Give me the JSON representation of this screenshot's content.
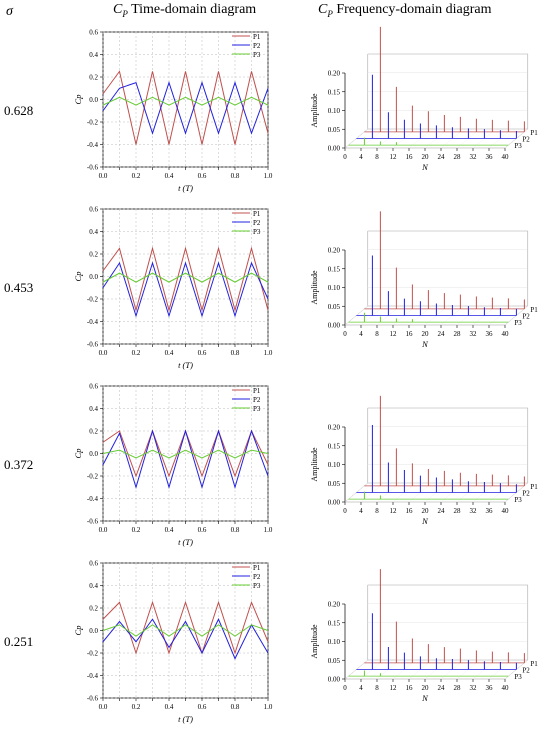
{
  "header": {
    "sigma_label": "σ",
    "time_title": "Time-domain diagram",
    "freq_title": "Frequency-domain diagram",
    "cp_symbol": "C",
    "cp_sub": "P"
  },
  "colors": {
    "P1": "#c0504d",
    "P2": "#2020e0",
    "P3": "#66cc33",
    "grid": "#bbbbbb"
  },
  "chart_data": [
    {
      "type": "line",
      "sigma": "0.628",
      "x": [
        0.0,
        0.1,
        0.2,
        0.3,
        0.4,
        0.5,
        0.6,
        0.7,
        0.8,
        0.9,
        1.0
      ],
      "xlabel": "t (T)",
      "ylabel": "Cp",
      "xlim": [
        0,
        1
      ],
      "ylim": [
        -0.6,
        0.6
      ],
      "yticks": [
        -0.6,
        -0.4,
        -0.2,
        0.0,
        0.2,
        0.4,
        0.6
      ],
      "series": [
        {
          "name": "P1",
          "values": [
            0.05,
            0.25,
            -0.4,
            0.25,
            -0.4,
            0.25,
            -0.4,
            0.25,
            -0.4,
            0.25,
            -0.3
          ]
        },
        {
          "name": "P2",
          "values": [
            -0.1,
            0.1,
            0.15,
            -0.3,
            0.15,
            -0.3,
            0.15,
            -0.3,
            0.15,
            -0.3,
            0.1
          ]
        },
        {
          "name": "P3",
          "values": [
            -0.05,
            0.02,
            -0.05,
            0.02,
            -0.05,
            0.02,
            -0.05,
            0.02,
            -0.05,
            0.02,
            -0.05
          ]
        }
      ],
      "legend": "top-right",
      "grid": true
    },
    {
      "type": "bar",
      "subtype": "3d-spectrum",
      "sigma": "0.628",
      "categories": [
        0,
        4,
        8,
        12,
        16,
        20,
        24,
        28,
        32,
        36,
        40
      ],
      "xlabel": "N",
      "ylabel": "Amplitude",
      "ylim": [
        0,
        0.2
      ],
      "yticks": [
        0.0,
        0.05,
        0.1,
        0.15,
        0.2
      ],
      "series": [
        {
          "name": "P1",
          "peaks": [
            [
              4,
              0.28
            ],
            [
              8,
              0.12
            ],
            [
              12,
              0.07
            ],
            [
              16,
              0.055
            ],
            [
              20,
              0.045
            ],
            [
              24,
              0.04
            ],
            [
              28,
              0.035
            ],
            [
              32,
              0.032
            ],
            [
              36,
              0.03
            ],
            [
              40,
              0.028
            ]
          ]
        },
        {
          "name": "P2",
          "peaks": [
            [
              4,
              0.17
            ],
            [
              8,
              0.07
            ],
            [
              12,
              0.05
            ],
            [
              16,
              0.04
            ],
            [
              20,
              0.035
            ],
            [
              24,
              0.03
            ],
            [
              28,
              0.027
            ],
            [
              32,
              0.025
            ],
            [
              36,
              0.022
            ],
            [
              40,
              0.02
            ]
          ]
        },
        {
          "name": "P3",
          "peaks": [
            [
              4,
              0.02
            ],
            [
              8,
              0.01
            ],
            [
              12,
              0.008
            ]
          ]
        }
      ]
    },
    {
      "type": "line",
      "sigma": "0.453",
      "x": [
        0.0,
        0.1,
        0.2,
        0.3,
        0.4,
        0.5,
        0.6,
        0.7,
        0.8,
        0.9,
        1.0
      ],
      "xlabel": "t (T)",
      "ylabel": "Cp",
      "xlim": [
        0,
        1
      ],
      "ylim": [
        -0.6,
        0.6
      ],
      "yticks": [
        -0.6,
        -0.4,
        -0.2,
        0.0,
        0.2,
        0.4,
        0.6
      ],
      "series": [
        {
          "name": "P1",
          "values": [
            0.05,
            0.25,
            -0.3,
            0.25,
            -0.3,
            0.25,
            -0.3,
            0.25,
            -0.3,
            0.25,
            -0.3
          ]
        },
        {
          "name": "P2",
          "values": [
            -0.1,
            0.12,
            -0.35,
            0.12,
            -0.35,
            0.12,
            -0.35,
            0.12,
            -0.35,
            0.12,
            -0.2
          ]
        },
        {
          "name": "P3",
          "values": [
            -0.05,
            0.03,
            -0.05,
            0.03,
            -0.05,
            0.03,
            -0.05,
            0.03,
            -0.05,
            0.03,
            -0.05
          ]
        }
      ],
      "legend": "top-right",
      "grid": true
    },
    {
      "type": "bar",
      "subtype": "3d-spectrum",
      "sigma": "0.453",
      "categories": [
        0,
        4,
        8,
        12,
        16,
        20,
        24,
        28,
        32,
        36,
        40
      ],
      "xlabel": "N",
      "ylabel": "Amplitude",
      "ylim": [
        0,
        0.2
      ],
      "yticks": [
        0.0,
        0.05,
        0.1,
        0.15,
        0.2
      ],
      "series": [
        {
          "name": "P1",
          "peaks": [
            [
              4,
              0.26
            ],
            [
              8,
              0.11
            ],
            [
              12,
              0.065
            ],
            [
              16,
              0.05
            ],
            [
              20,
              0.042
            ],
            [
              24,
              0.038
            ],
            [
              28,
              0.033
            ],
            [
              32,
              0.03
            ],
            [
              36,
              0.028
            ],
            [
              40,
              0.025
            ]
          ]
        },
        {
          "name": "P2",
          "peaks": [
            [
              4,
              0.16
            ],
            [
              8,
              0.065
            ],
            [
              12,
              0.045
            ],
            [
              16,
              0.038
            ],
            [
              20,
              0.032
            ],
            [
              24,
              0.028
            ],
            [
              28,
              0.025
            ],
            [
              32,
              0.022
            ],
            [
              36,
              0.02
            ],
            [
              40,
              0.018
            ]
          ]
        },
        {
          "name": "P3",
          "peaks": [
            [
              4,
              0.025
            ],
            [
              8,
              0.015
            ],
            [
              12,
              0.01
            ],
            [
              16,
              0.008
            ]
          ]
        }
      ]
    },
    {
      "type": "line",
      "sigma": "0.372",
      "x": [
        0.0,
        0.1,
        0.2,
        0.3,
        0.4,
        0.5,
        0.6,
        0.7,
        0.8,
        0.9,
        1.0
      ],
      "xlabel": "t (T)",
      "ylabel": "Cp",
      "xlim": [
        0,
        1
      ],
      "ylim": [
        -0.6,
        0.6
      ],
      "yticks": [
        -0.6,
        -0.4,
        -0.2,
        0.0,
        0.2,
        0.4,
        0.6
      ],
      "series": [
        {
          "name": "P1",
          "values": [
            0.1,
            0.2,
            -0.2,
            0.2,
            -0.2,
            0.2,
            -0.2,
            0.2,
            -0.2,
            0.2,
            -0.1
          ]
        },
        {
          "name": "P2",
          "values": [
            -0.1,
            0.18,
            -0.3,
            0.2,
            -0.3,
            0.2,
            -0.3,
            0.2,
            -0.3,
            0.2,
            -0.2
          ]
        },
        {
          "name": "P3",
          "values": [
            0.0,
            0.03,
            -0.04,
            0.03,
            -0.04,
            0.03,
            -0.04,
            0.03,
            -0.04,
            0.03,
            0.0
          ]
        }
      ],
      "legend": "top-right",
      "grid": true
    },
    {
      "type": "bar",
      "subtype": "3d-spectrum",
      "sigma": "0.372",
      "categories": [
        0,
        4,
        8,
        12,
        16,
        20,
        24,
        28,
        32,
        36,
        40
      ],
      "xlabel": "N",
      "ylabel": "Amplitude",
      "ylim": [
        0,
        0.2
      ],
      "yticks": [
        0.0,
        0.05,
        0.1,
        0.15,
        0.2
      ],
      "series": [
        {
          "name": "P1",
          "peaks": [
            [
              4,
              0.24
            ],
            [
              8,
              0.1
            ],
            [
              12,
              0.06
            ],
            [
              16,
              0.045
            ],
            [
              20,
              0.04
            ],
            [
              24,
              0.035
            ],
            [
              28,
              0.032
            ],
            [
              32,
              0.03
            ],
            [
              36,
              0.028
            ],
            [
              40,
              0.025
            ]
          ]
        },
        {
          "name": "P2",
          "peaks": [
            [
              4,
              0.18
            ],
            [
              8,
              0.08
            ],
            [
              12,
              0.06
            ],
            [
              16,
              0.045
            ],
            [
              20,
              0.04
            ],
            [
              24,
              0.035
            ],
            [
              28,
              0.03
            ],
            [
              32,
              0.028
            ],
            [
              36,
              0.025
            ],
            [
              40,
              0.022
            ]
          ]
        },
        {
          "name": "P3",
          "peaks": [
            [
              4,
              0.02
            ],
            [
              8,
              0.01
            ]
          ]
        }
      ]
    },
    {
      "type": "line",
      "sigma": "0.251",
      "x": [
        0.0,
        0.1,
        0.2,
        0.3,
        0.4,
        0.5,
        0.6,
        0.7,
        0.8,
        0.9,
        1.0
      ],
      "xlabel": "t (T)",
      "ylabel": "Cp",
      "xlim": [
        0,
        1
      ],
      "ylim": [
        -0.6,
        0.6
      ],
      "yticks": [
        -0.6,
        -0.4,
        -0.2,
        0.0,
        0.2,
        0.4,
        0.6
      ],
      "series": [
        {
          "name": "P1",
          "values": [
            0.1,
            0.25,
            -0.2,
            0.25,
            -0.2,
            0.25,
            -0.2,
            0.25,
            -0.2,
            0.25,
            -0.1
          ]
        },
        {
          "name": "P2",
          "values": [
            -0.1,
            0.08,
            -0.1,
            0.1,
            -0.15,
            0.08,
            -0.2,
            0.1,
            -0.25,
            0.05,
            -0.2
          ]
        },
        {
          "name": "P3",
          "values": [
            0.0,
            0.05,
            -0.05,
            0.05,
            -0.05,
            0.05,
            -0.05,
            0.05,
            -0.05,
            0.05,
            0.0
          ]
        }
      ],
      "legend": "top-right",
      "grid": true
    },
    {
      "type": "bar",
      "subtype": "3d-spectrum",
      "sigma": "0.251",
      "categories": [
        0,
        4,
        8,
        12,
        16,
        20,
        24,
        28,
        32,
        36,
        40
      ],
      "xlabel": "N",
      "ylabel": "Amplitude",
      "ylim": [
        0,
        0.2
      ],
      "yticks": [
        0.0,
        0.05,
        0.1,
        0.15,
        0.2
      ],
      "series": [
        {
          "name": "P1",
          "peaks": [
            [
              4,
              0.25
            ],
            [
              8,
              0.11
            ],
            [
              12,
              0.065
            ],
            [
              16,
              0.05
            ],
            [
              20,
              0.042
            ],
            [
              24,
              0.038
            ],
            [
              28,
              0.033
            ],
            [
              32,
              0.03
            ],
            [
              36,
              0.028
            ],
            [
              40,
              0.026
            ]
          ]
        },
        {
          "name": "P2",
          "peaks": [
            [
              4,
              0.15
            ],
            [
              8,
              0.06
            ],
            [
              12,
              0.045
            ],
            [
              16,
              0.035
            ],
            [
              20,
              0.03
            ],
            [
              24,
              0.028
            ],
            [
              28,
              0.025
            ],
            [
              32,
              0.022
            ],
            [
              36,
              0.02
            ],
            [
              40,
              0.018
            ]
          ]
        },
        {
          "name": "P3",
          "peaks": [
            [
              4,
              0.015
            ],
            [
              8,
              0.008
            ]
          ]
        }
      ]
    }
  ]
}
